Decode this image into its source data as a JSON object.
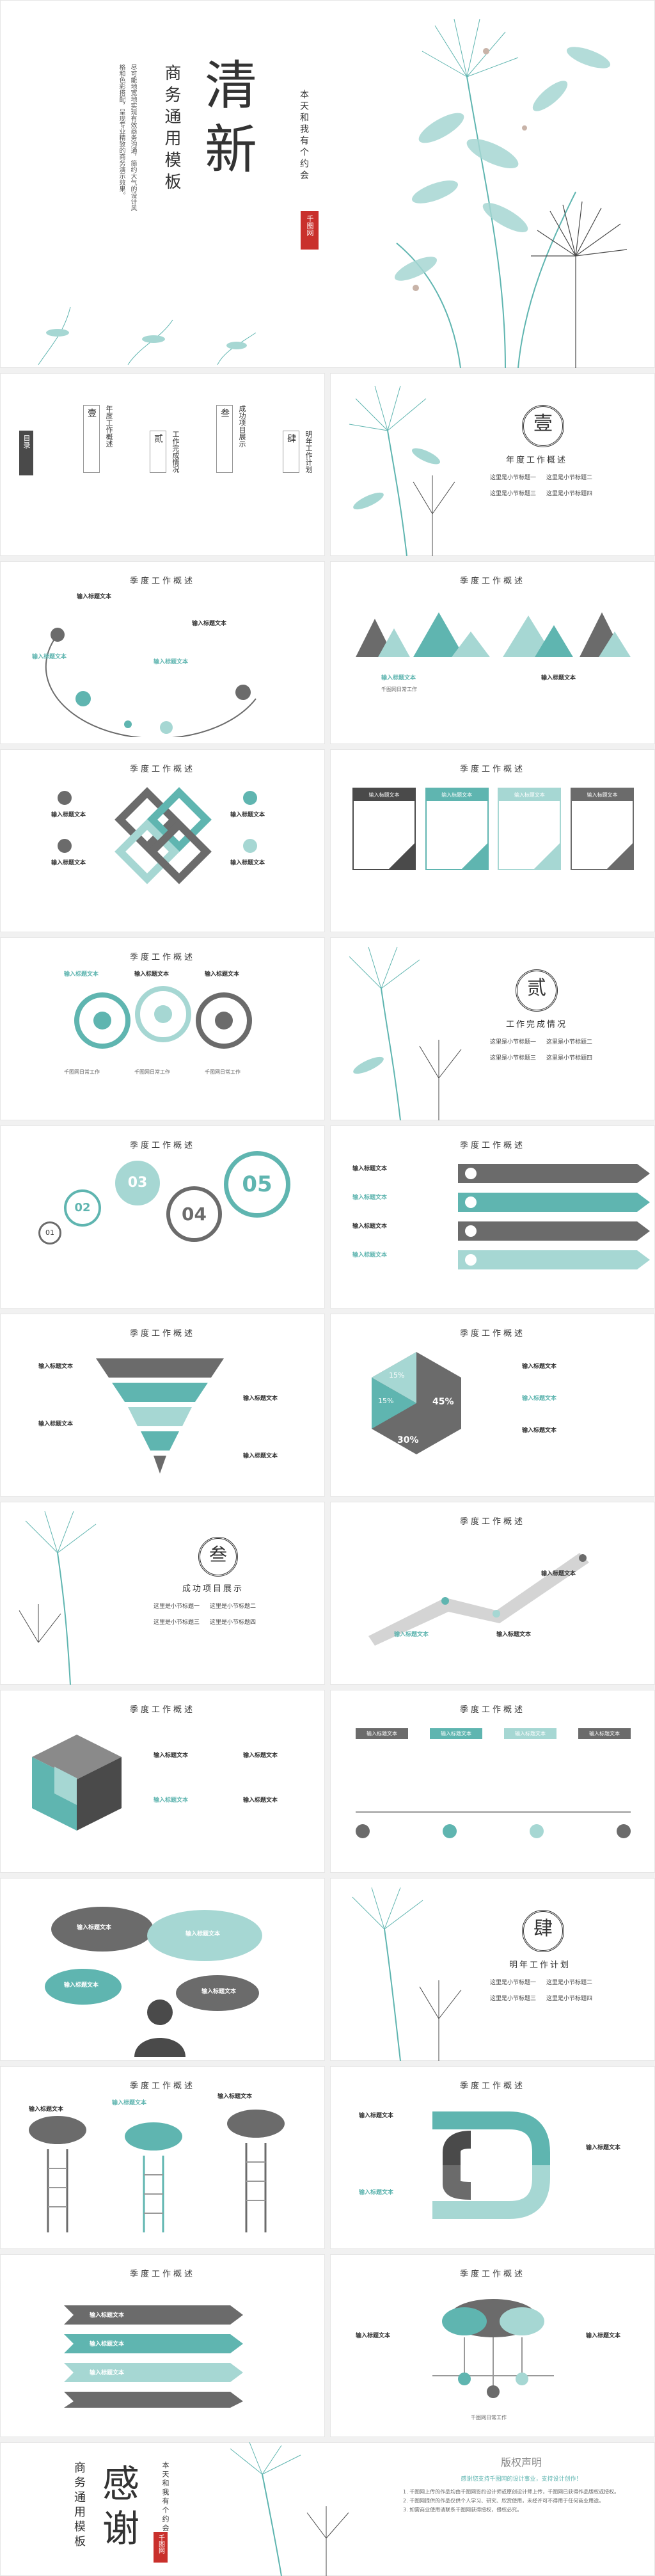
{
  "colors": {
    "teal": "#5fb5b0",
    "light_teal": "#a6d7d3",
    "gray": "#6b6b6b",
    "dark": "#4a4a4a",
    "red": "#c9302c"
  },
  "hero": {
    "title_big": [
      "清",
      "新"
    ],
    "title_vertical": "商务通用模板",
    "subtitle_vertical": "本天和我有个约会",
    "stamp": "千图网",
    "intro": "尽可能地宽地实现有效商务沟通，简约大气的设计风格和色彩搭配，呈现专业精致的商务演示效果。"
  },
  "toc": {
    "left_badge": "目录",
    "items": [
      {
        "num": "壹",
        "title": "年度工作概述"
      },
      {
        "num": "贰",
        "title": "工作完成情况"
      },
      {
        "num": "叁",
        "title": "成功项目展示"
      },
      {
        "num": "肆",
        "title": "明年工作计划"
      }
    ]
  },
  "section_title": "季度工作概述",
  "placeholder": "输入标题文本",
  "placeholder_small": "千图网日常工作",
  "bullet": "这里是小节标题",
  "sections": {
    "s1": {
      "num": "壹",
      "title": "年度工作概述",
      "bullets": [
        "这里是小节标题一",
        "这里是小节标题二",
        "这里是小节标题三",
        "这里是小节标题四"
      ]
    },
    "s2": {
      "num": "贰",
      "title": "工作完成情况",
      "bullets": [
        "这里是小节标题一",
        "这里是小节标题二",
        "这里是小节标题三",
        "这里是小节标题四"
      ]
    },
    "s3": {
      "num": "叁",
      "title": "成功项目展示",
      "bullets": [
        "这里是小节标题一",
        "这里是小节标题二",
        "这里是小节标题三",
        "这里是小节标题四"
      ]
    },
    "s4": {
      "num": "肆",
      "title": "明年工作计划",
      "bullets": [
        "这里是小节标题一",
        "这里是小节标题二",
        "这里是小节标题三",
        "这里是小节标题四"
      ]
    }
  },
  "numbers": {
    "n01": "01",
    "n02": "02",
    "n03": "03",
    "n04": "04",
    "n05": "05"
  },
  "hex_chart": {
    "pcts": [
      "15%",
      "15%",
      "45%",
      "30%"
    ]
  },
  "ending": {
    "big": [
      "感",
      "谢"
    ],
    "vertical": "商务通用模板",
    "stamp": "千图网",
    "subtitle_vertical": "本天和我有个约会",
    "copyright_title": "版权声明",
    "copyright_lead": "感谢您支持千图网的设计事业，支持设计创作！",
    "copyright_lines": [
      "1. 千图网上传的作品均由千图网签约设计师或原创设计师上传，千图网已获得作品版权或授权。",
      "2. 千图网提供的作品仅供个人学习、研究、欣赏使用，未经许可不得用于任何商业用途。",
      "3. 如需商业使用请联系千图网获得授权，侵权必究。"
    ]
  }
}
